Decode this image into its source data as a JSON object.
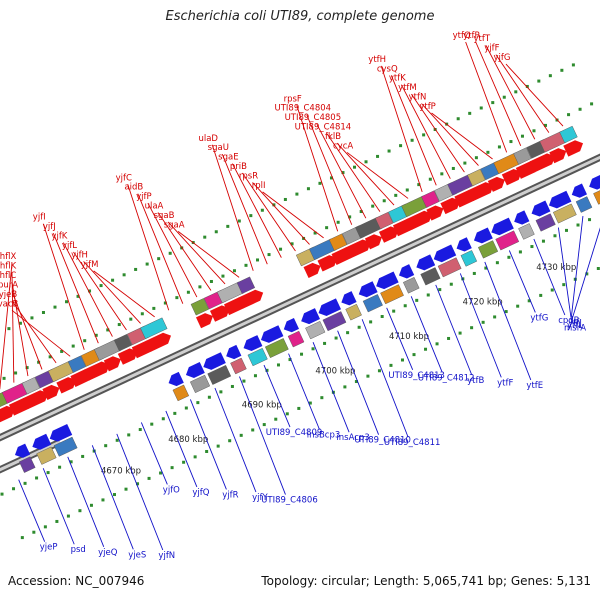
{
  "title": "Escherichia coli UTI89, complete genome",
  "footer": {
    "accession": "Accession: NC_007946",
    "summary": "Topology: circular; Length: 5,065,741 bp; Genes: 5,131"
  },
  "colors": {
    "forward_label": "#d40000",
    "reverse_label": "#1010c8",
    "axis": "#8a8a8a",
    "tick": "#2e8b2e",
    "forward_gene": "#ee1111",
    "reverse_gene": "#1a1ae0"
  },
  "scale_kbp": [
    4670,
    4680,
    4690,
    4700,
    4710,
    4720,
    4730
  ],
  "scale_unit": "kbp",
  "forward_labels": [
    "hflX",
    "hflK",
    "hflC",
    "purA",
    "yjeB",
    "vacB",
    "yjfI",
    "yjfJ",
    "yjfK",
    "yjfL",
    "yjfH",
    "yjfM",
    "yjfC",
    "aidB",
    "yjfP",
    "ulaA",
    "sgaB",
    "sgaA",
    "ulaD",
    "sgaU",
    "sgaE",
    "priB",
    "rpsR",
    "rplI",
    "rpsF",
    "UTI89_C4804",
    "UTI89_C4805",
    "UTI89_C4814",
    "fklB",
    "cycA",
    "ytfH",
    "cysQ",
    "ytfK",
    "ytfM",
    "ytfN",
    "ytfP",
    "ytfQ",
    "ytfR",
    "ytfT",
    "yjfF",
    "yjfG"
  ],
  "reverse_labels": [
    "yjeP",
    "psd",
    "yjeQ",
    "yjeS",
    "yjfN",
    "yjfO",
    "yjfQ",
    "yjfR",
    "yjfY",
    "UTI89_C4806",
    "UTI89_C4809",
    "insBcp3",
    "insAcp3",
    "UTI89_C4810",
    "UTI89_C4811",
    "UTI89_C4813",
    "UTI89_C4812",
    "ytfB",
    "ytfF",
    "ytfE",
    "ytfG",
    "cpdB",
    "ytfJ",
    "ytfL",
    "msrA"
  ]
}
